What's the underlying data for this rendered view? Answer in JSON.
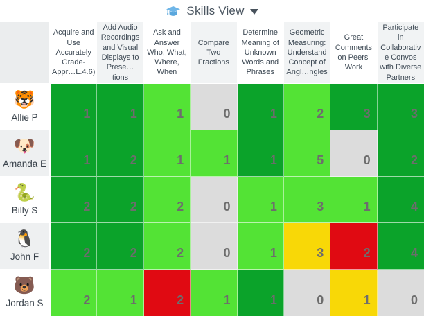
{
  "header": {
    "title": "Skills View",
    "icon": "graduation-cap-icon",
    "icon_color": "#6fb6e8",
    "caret_color": "#48525c"
  },
  "colors": {
    "dark_green": "#0ba32a",
    "light_green": "#53e335",
    "yellow": "#f8d807",
    "red": "#e00a12",
    "gray": "#dcdcdc",
    "value_text": "#6d6d6d",
    "header_alt_bg": "#f1f3f4",
    "row_alt_bg": "#eef0f1",
    "corner_bg": "#ebedee"
  },
  "skills": [
    "Acquire and Use Accurately Grade-Appr…L.4.6)",
    "Add Audio Recordings and Visual Displays to Prese…tions",
    "Ask and Answer Who, What, Where, When",
    "Compare Two Fractions",
    "Determine Meaning of Unknown Words and Phrases",
    "Geometric Measuring: Understand Concept of Angl…ngles",
    "Great Comments on Peers' Work",
    "Participate in Collaborativ e Convos with Diverse Partners"
  ],
  "students": [
    {
      "name": "Allie P",
      "emoji": "🐯",
      "cells": [
        {
          "value": "1",
          "color": "dark_green"
        },
        {
          "value": "1",
          "color": "dark_green"
        },
        {
          "value": "1",
          "color": "light_green"
        },
        {
          "value": "0",
          "color": "gray"
        },
        {
          "value": "1",
          "color": "dark_green"
        },
        {
          "value": "2",
          "color": "light_green"
        },
        {
          "value": "3",
          "color": "dark_green"
        },
        {
          "value": "3",
          "color": "dark_green"
        }
      ]
    },
    {
      "name": "Amanda E",
      "emoji": "🐶",
      "cells": [
        {
          "value": "1",
          "color": "dark_green"
        },
        {
          "value": "2",
          "color": "dark_green"
        },
        {
          "value": "1",
          "color": "light_green"
        },
        {
          "value": "1",
          "color": "light_green"
        },
        {
          "value": "1",
          "color": "dark_green"
        },
        {
          "value": "5",
          "color": "light_green"
        },
        {
          "value": "0",
          "color": "gray"
        },
        {
          "value": "2",
          "color": "dark_green"
        }
      ]
    },
    {
      "name": "Billy S",
      "emoji": "🐍",
      "cells": [
        {
          "value": "2",
          "color": "dark_green"
        },
        {
          "value": "2",
          "color": "dark_green"
        },
        {
          "value": "2",
          "color": "light_green"
        },
        {
          "value": "0",
          "color": "gray"
        },
        {
          "value": "1",
          "color": "light_green"
        },
        {
          "value": "3",
          "color": "light_green"
        },
        {
          "value": "1",
          "color": "light_green"
        },
        {
          "value": "4",
          "color": "dark_green"
        }
      ]
    },
    {
      "name": "John F",
      "emoji": "🐧",
      "cells": [
        {
          "value": "2",
          "color": "dark_green"
        },
        {
          "value": "2",
          "color": "dark_green"
        },
        {
          "value": "2",
          "color": "light_green"
        },
        {
          "value": "0",
          "color": "gray"
        },
        {
          "value": "1",
          "color": "light_green"
        },
        {
          "value": "3",
          "color": "yellow"
        },
        {
          "value": "2",
          "color": "red"
        },
        {
          "value": "4",
          "color": "dark_green"
        }
      ]
    },
    {
      "name": "Jordan S",
      "emoji": "🐻",
      "cells": [
        {
          "value": "2",
          "color": "light_green"
        },
        {
          "value": "1",
          "color": "light_green"
        },
        {
          "value": "2",
          "color": "red"
        },
        {
          "value": "1",
          "color": "light_green"
        },
        {
          "value": "1",
          "color": "dark_green"
        },
        {
          "value": "0",
          "color": "gray"
        },
        {
          "value": "1",
          "color": "yellow"
        },
        {
          "value": "0",
          "color": "gray"
        }
      ]
    }
  ]
}
